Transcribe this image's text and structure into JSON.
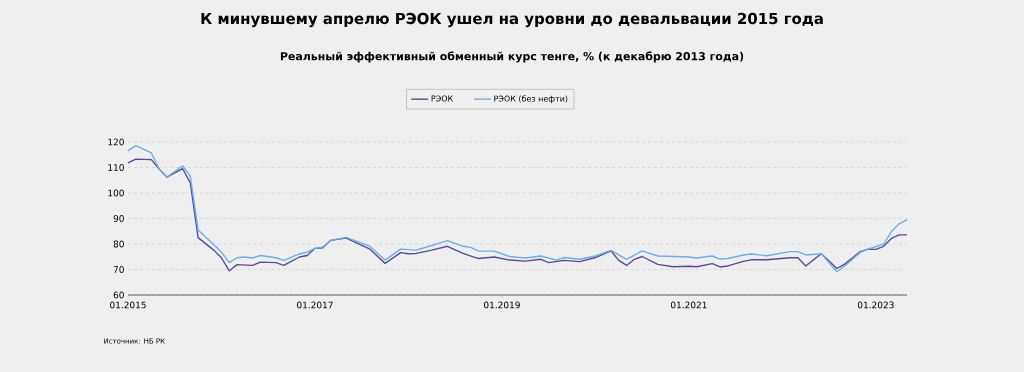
{
  "chart_data": {
    "type": "line",
    "title": "К минувшему апрелю РЭОК ушел на уровни до девальвации 2015 года",
    "subtitle": "Реальный эффективный обменный курс тенге, % (к декабрю 2013 года)",
    "annotations": [
      "Источник: НБ РК"
    ],
    "series": [
      {
        "name": "РЭОК",
        "color": "#5a4a9c",
        "x": [
          "2015-01",
          "2015-02",
          "2015-04",
          "2015-05",
          "2015-06",
          "2015-08",
          "2015-09",
          "2015-10",
          "2015-12",
          "2016-01",
          "2016-02",
          "2016-03",
          "2016-05",
          "2016-06",
          "2016-08",
          "2016-09",
          "2016-11",
          "2016-12",
          "2017-01",
          "2017-02",
          "2017-03",
          "2017-05",
          "2017-08",
          "2017-10",
          "2017-12",
          "2018-01",
          "2018-02",
          "2018-04",
          "2018-06",
          "2018-08",
          "2018-10",
          "2018-12",
          "2019-02",
          "2019-04",
          "2019-06",
          "2019-07",
          "2019-09",
          "2019-11",
          "2020-01",
          "2020-03",
          "2020-04",
          "2020-05",
          "2020-06",
          "2020-07",
          "2020-09",
          "2020-11",
          "2021-01",
          "2021-02",
          "2021-04",
          "2021-05",
          "2021-06",
          "2021-08",
          "2021-09",
          "2021-11",
          "2022-02",
          "2022-03",
          "2022-04",
          "2022-06",
          "2022-08",
          "2022-09",
          "2022-11",
          "2022-12",
          "2023-01",
          "2023-02",
          "2023-03",
          "2023-04",
          "2023-05"
        ],
        "values": [
          111.8,
          113.3,
          113.1,
          109.4,
          106.2,
          109.6,
          104,
          82.5,
          77.6,
          74.6,
          69.5,
          71.9,
          71.6,
          72.9,
          72.7,
          71.6,
          74.9,
          75.5,
          78.3,
          78.5,
          81.4,
          82.3,
          78.1,
          72.4,
          76.6,
          76.2,
          76.3,
          77.6,
          79.1,
          76.3,
          74.3,
          74.9,
          73.7,
          73.3,
          74,
          72.7,
          73.6,
          73.1,
          74.7,
          77.3,
          73.6,
          71.6,
          74,
          75.1,
          72,
          71.1,
          71.3,
          71.1,
          72.3,
          71,
          71.4,
          73.2,
          73.8,
          73.8,
          74.6,
          74.6,
          71.4,
          76.2,
          70.4,
          72.1,
          77,
          78,
          77.9,
          79.1,
          82.2,
          83.6,
          83.6
        ]
      },
      {
        "name": "РЭОК (без нефти)",
        "color": "#6aafe6",
        "x": [
          "2015-01",
          "2015-02",
          "2015-04",
          "2015-05",
          "2015-06",
          "2015-08",
          "2015-09",
          "2015-10",
          "2015-12",
          "2016-01",
          "2016-02",
          "2016-03",
          "2016-04",
          "2016-05",
          "2016-06",
          "2016-08",
          "2016-09",
          "2016-11",
          "2016-12",
          "2017-01",
          "2017-02",
          "2017-03",
          "2017-05",
          "2017-08",
          "2017-10",
          "2017-12",
          "2018-02",
          "2018-04",
          "2018-06",
          "2018-08",
          "2018-09",
          "2018-10",
          "2018-12",
          "2019-02",
          "2019-04",
          "2019-06",
          "2019-08",
          "2019-09",
          "2019-11",
          "2020-01",
          "2020-03",
          "2020-05",
          "2020-07",
          "2020-09",
          "2021-01",
          "2021-02",
          "2021-04",
          "2021-05",
          "2021-06",
          "2021-08",
          "2021-09",
          "2021-11",
          "2022-02",
          "2022-03",
          "2022-04",
          "2022-06",
          "2022-08",
          "2022-09",
          "2022-11",
          "2022-12",
          "2023-02",
          "2023-03",
          "2023-04",
          "2023-05"
        ],
        "values": [
          116.5,
          118.6,
          115.7,
          109.4,
          106.2,
          110.7,
          106.6,
          85.5,
          79.8,
          76.8,
          72.7,
          74.6,
          74.9,
          74.5,
          75.5,
          74.6,
          73.6,
          76.1,
          76.8,
          78.3,
          78.8,
          81.4,
          82.6,
          79.2,
          73.7,
          78.0,
          77.6,
          79.4,
          81.3,
          79.1,
          78.7,
          77.2,
          77.2,
          75.1,
          74.5,
          75.3,
          73.7,
          74.7,
          74,
          75.3,
          77.5,
          74,
          77.3,
          75.3,
          74.9,
          74.5,
          75.3,
          74.1,
          74.3,
          75.7,
          76.1,
          75.4,
          77,
          77,
          75.7,
          76.2,
          69.1,
          71.4,
          76.7,
          78,
          80,
          84.9,
          87.9,
          89.6
        ]
      }
    ],
    "xlim": [
      "2015-01",
      "2023-05"
    ],
    "xticks": [
      {
        "value": "2015-01",
        "label": "01.2015"
      },
      {
        "value": "2017-01",
        "label": "01.2017"
      },
      {
        "value": "2019-01",
        "label": "01.2019"
      },
      {
        "value": "2021-01",
        "label": "01.2021"
      },
      {
        "value": "2023-01",
        "label": "01.2023"
      }
    ],
    "ylim": [
      60,
      120
    ],
    "yticks": [
      60,
      70,
      80,
      90,
      100,
      110,
      120
    ],
    "grid": "y",
    "legend": "top",
    "marker": "none",
    "line_style": "solid"
  }
}
